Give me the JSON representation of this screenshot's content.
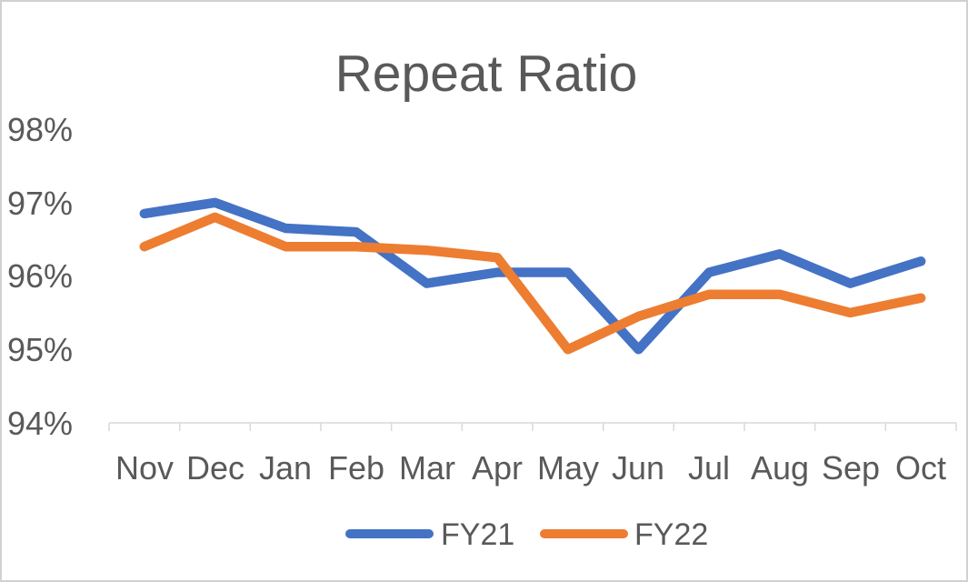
{
  "chart_data": {
    "type": "line",
    "title": "Repeat Ratio",
    "categories": [
      "Nov",
      "Dec",
      "Jan",
      "Feb",
      "Mar",
      "Apr",
      "May",
      "Jun",
      "Jul",
      "Aug",
      "Sep",
      "Oct"
    ],
    "series": [
      {
        "name": "FY21",
        "color": "#4472C4",
        "values": [
          96.85,
          97.0,
          96.65,
          96.6,
          95.9,
          96.05,
          96.05,
          95.0,
          96.05,
          96.3,
          95.9,
          96.2
        ]
      },
      {
        "name": "FY22",
        "color": "#ED7D31",
        "values": [
          96.4,
          96.8,
          96.4,
          96.4,
          96.35,
          96.25,
          95.0,
          95.45,
          95.75,
          95.75,
          95.5,
          95.7
        ]
      }
    ],
    "y_ticks": [
      "98%",
      "97%",
      "96%",
      "95%",
      "94%"
    ],
    "y_tick_values": [
      98,
      97,
      96,
      95,
      94
    ],
    "ylim": [
      94,
      98
    ],
    "xlabel": "",
    "ylabel": "",
    "grid": false,
    "legend_position": "bottom",
    "text_color": "#595959",
    "axis_color": "#D9D9D9"
  }
}
